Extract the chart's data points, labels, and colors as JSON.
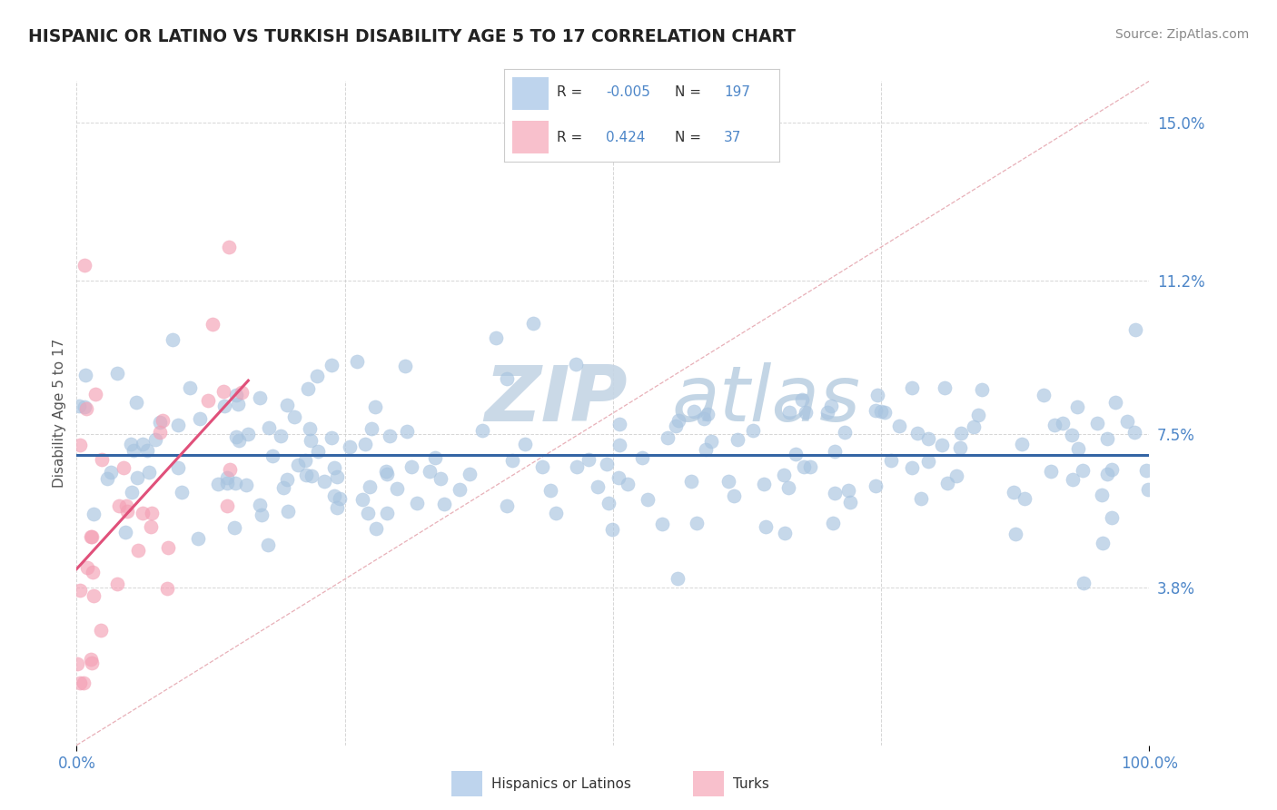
{
  "title": "HISPANIC OR LATINO VS TURKISH DISABILITY AGE 5 TO 17 CORRELATION CHART",
  "source_text": "Source: ZipAtlas.com",
  "ylabel": "Disability Age 5 to 17",
  "xlim": [
    0.0,
    100.0
  ],
  "ylim": [
    0.0,
    16.0
  ],
  "yticks": [
    3.8,
    7.5,
    11.2,
    15.0
  ],
  "ytick_labels": [
    "3.8%",
    "7.5%",
    "11.2%",
    "15.0%"
  ],
  "xtick_labels": [
    "0.0%",
    "100.0%"
  ],
  "blue_R": "-0.005",
  "blue_N": "197",
  "pink_R": "0.424",
  "pink_N": "37",
  "blue_dot_color": "#a8c4e0",
  "pink_dot_color": "#f4a0b5",
  "blue_line_color": "#3465a4",
  "pink_line_color": "#e0507a",
  "diag_line_color": "#d8a0b0",
  "tick_label_color": "#4d86c8",
  "ylabel_color": "#555555",
  "title_color": "#222222",
  "source_color": "#888888",
  "legend_border_color": "#cccccc",
  "legend_box_blue": "#bed4ed",
  "legend_box_pink": "#f8c0cc",
  "watermark_zip_color": "#c5d5e5",
  "watermark_atlas_color": "#aac4da",
  "grid_color": "#cccccc",
  "background": "#ffffff",
  "scatter_size_blue": 120,
  "scatter_size_pink": 120,
  "scatter_alpha": 0.65
}
